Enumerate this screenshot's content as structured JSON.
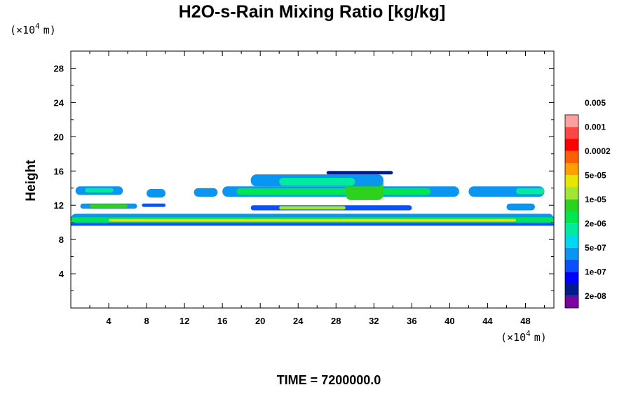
{
  "chart_data": {
    "type": "heatmap",
    "title": "H2O-s-Rain Mixing Ratio [kg/kg]",
    "ylabel": "Height",
    "xlabel": "",
    "x_scale_label": "(×10",
    "y_scale_label": "(×10",
    "scale_exponent": "4",
    "scale_unit": "m)",
    "xlim": [
      0,
      51
    ],
    "ylim": [
      0,
      30
    ],
    "x_ticks": [
      4,
      8,
      12,
      16,
      20,
      24,
      28,
      32,
      36,
      40,
      44,
      48
    ],
    "y_ticks": [
      4,
      8,
      12,
      16,
      20,
      24,
      28
    ],
    "colorbar": {
      "colors": [
        "#7d00a0",
        "#001b8c",
        "#0000ff",
        "#0a50ff",
        "#0a96f0",
        "#00d7f0",
        "#00eba0",
        "#00e650",
        "#2dd21e",
        "#a0e632",
        "#e6e600",
        "#ffa000",
        "#ff5f00",
        "#ff0000",
        "#ff4646",
        "#ffa0a0"
      ],
      "labels": [
        "2e-08",
        "1e-07",
        "5e-07",
        "2e-06",
        "1e-05",
        "5e-05",
        "0.0002",
        "0.001",
        "0.005"
      ]
    },
    "regions": [
      {
        "level": 4,
        "x": [
          0.5,
          5.5
        ],
        "y": [
          13.2,
          14.2
        ]
      },
      {
        "level": 6,
        "x": [
          1.5,
          4.5
        ],
        "y": [
          13.5,
          14.0
        ]
      },
      {
        "level": 4,
        "x": [
          8.0,
          10.0
        ],
        "y": [
          12.9,
          13.9
        ]
      },
      {
        "level": 4,
        "x": [
          13.0,
          15.5
        ],
        "y": [
          13.0,
          14.0
        ]
      },
      {
        "level": 4,
        "x": [
          16.0,
          41.0
        ],
        "y": [
          13.0,
          14.2
        ]
      },
      {
        "level": 7,
        "x": [
          17.5,
          38.0
        ],
        "y": [
          13.2,
          14.0
        ]
      },
      {
        "level": 8,
        "x": [
          29.0,
          33.0
        ],
        "y": [
          12.6,
          15.2
        ]
      },
      {
        "level": 4,
        "x": [
          19.0,
          33.0
        ],
        "y": [
          14.2,
          15.6
        ]
      },
      {
        "level": 6,
        "x": [
          22.0,
          30.0
        ],
        "y": [
          14.3,
          15.2
        ]
      },
      {
        "level": 1,
        "x": [
          27.0,
          34.0
        ],
        "y": [
          15.6,
          16.0
        ]
      },
      {
        "level": 4,
        "x": [
          42.0,
          50.0
        ],
        "y": [
          13.0,
          14.2
        ]
      },
      {
        "level": 6,
        "x": [
          47.0,
          50.0
        ],
        "y": [
          13.3,
          14.0
        ]
      },
      {
        "level": 4,
        "x": [
          1.0,
          7.0
        ],
        "y": [
          11.6,
          12.2
        ]
      },
      {
        "level": 8,
        "x": [
          2.0,
          6.0
        ],
        "y": [
          11.7,
          12.1
        ]
      },
      {
        "level": 3,
        "x": [
          7.5,
          10.0
        ],
        "y": [
          11.8,
          12.2
        ]
      },
      {
        "level": 3,
        "x": [
          19.0,
          36.0
        ],
        "y": [
          11.4,
          12.0
        ]
      },
      {
        "level": 9,
        "x": [
          22.0,
          29.0
        ],
        "y": [
          11.5,
          11.9
        ]
      },
      {
        "level": 4,
        "x": [
          46.0,
          49.0
        ],
        "y": [
          11.4,
          12.2
        ]
      },
      {
        "level": 4,
        "x": [
          0.0,
          51.0
        ],
        "y": [
          9.8,
          11.0
        ]
      },
      {
        "level": 7,
        "x": [
          0.0,
          51.0
        ],
        "y": [
          10.0,
          10.6
        ]
      },
      {
        "level": 10,
        "x": [
          4.0,
          47.0
        ],
        "y": [
          10.1,
          10.4
        ]
      },
      {
        "level": 3,
        "x": [
          0.0,
          51.0
        ],
        "y": [
          9.6,
          9.9
        ]
      }
    ]
  },
  "footer": {
    "time_label": "TIME = 7200000.0"
  }
}
